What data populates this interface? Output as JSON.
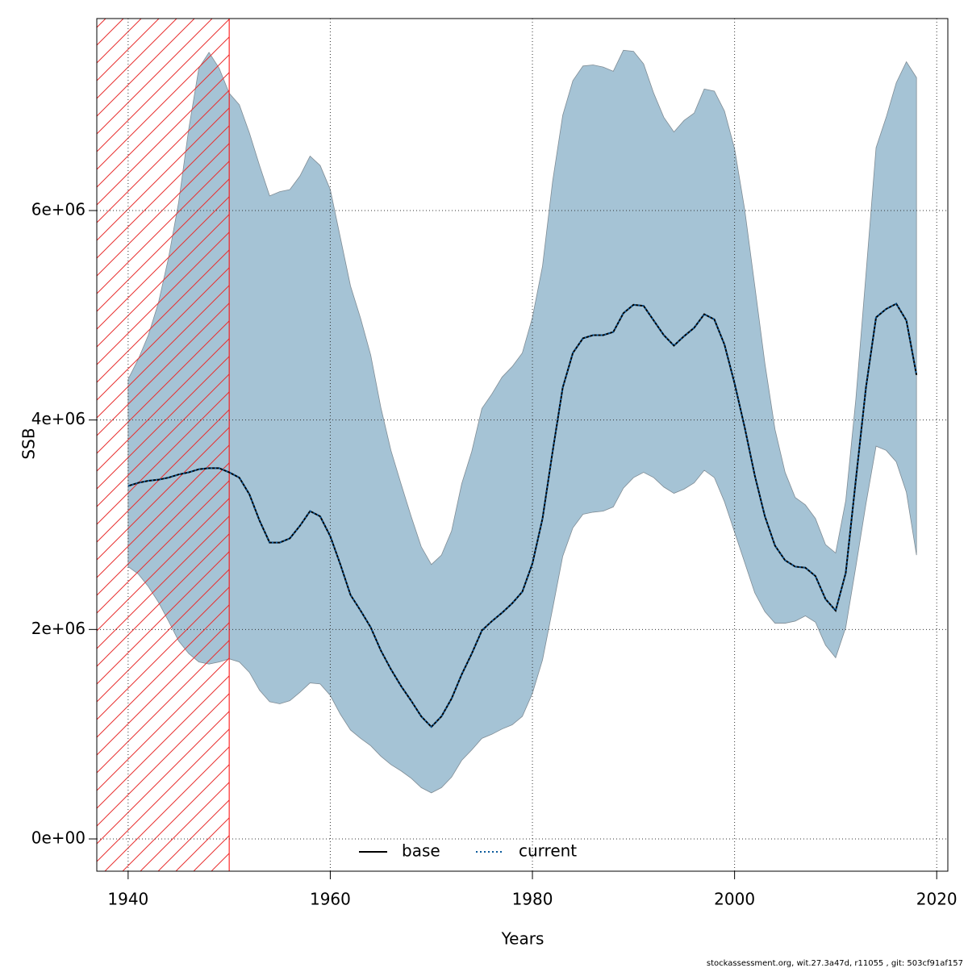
{
  "chart_data": {
    "type": "line",
    "xlabel": "Years",
    "ylabel": "SSB",
    "footnote": "stockassessment.org, wit.27.3a47d, r11055 , git: 503cf91af157",
    "x": [
      1940,
      1941,
      1942,
      1943,
      1944,
      1945,
      1946,
      1947,
      1948,
      1949,
      1950,
      1951,
      1952,
      1953,
      1954,
      1955,
      1956,
      1957,
      1958,
      1959,
      1960,
      1961,
      1962,
      1963,
      1964,
      1965,
      1966,
      1967,
      1968,
      1969,
      1970,
      1971,
      1972,
      1973,
      1974,
      1975,
      1976,
      1977,
      1978,
      1979,
      1980,
      1981,
      1982,
      1983,
      1984,
      1985,
      1986,
      1987,
      1988,
      1989,
      1990,
      1991,
      1992,
      1993,
      1994,
      1995,
      1996,
      1997,
      1998,
      1999,
      2000,
      2001,
      2002,
      2003,
      2004,
      2005,
      2006,
      2007,
      2008,
      2009,
      2010,
      2011,
      2012,
      2013,
      2014,
      2015,
      2016,
      2017,
      2018
    ],
    "series": [
      {
        "name": "base",
        "color": "#000000",
        "values": [
          3370000,
          3400000,
          3420000,
          3430000,
          3450000,
          3480000,
          3500000,
          3530000,
          3540000,
          3540000,
          3500000,
          3450000,
          3290000,
          3040000,
          2830000,
          2830000,
          2870000,
          2990000,
          3130000,
          3080000,
          2890000,
          2620000,
          2330000,
          2180000,
          2020000,
          1800000,
          1620000,
          1460000,
          1320000,
          1170000,
          1070000,
          1170000,
          1340000,
          1570000,
          1770000,
          1990000,
          2080000,
          2160000,
          2250000,
          2360000,
          2630000,
          3060000,
          3700000,
          4310000,
          4640000,
          4780000,
          4810000,
          4810000,
          4840000,
          5020000,
          5100000,
          5090000,
          4950000,
          4810000,
          4710000,
          4800000,
          4880000,
          5010000,
          4960000,
          4720000,
          4350000,
          3930000,
          3470000,
          3080000,
          2800000,
          2660000,
          2600000,
          2590000,
          2510000,
          2290000,
          2180000,
          2540000,
          3430000,
          4310000,
          4980000,
          5060000,
          5110000,
          4950000,
          4430000
        ]
      },
      {
        "name": "current",
        "color": "#0b5a9c",
        "values": [
          3370000,
          3400000,
          3420000,
          3430000,
          3450000,
          3480000,
          3500000,
          3530000,
          3540000,
          3540000,
          3500000,
          3450000,
          3290000,
          3040000,
          2830000,
          2830000,
          2870000,
          2990000,
          3130000,
          3080000,
          2890000,
          2620000,
          2330000,
          2180000,
          2020000,
          1800000,
          1620000,
          1460000,
          1320000,
          1170000,
          1070000,
          1170000,
          1340000,
          1570000,
          1770000,
          1990000,
          2080000,
          2160000,
          2250000,
          2360000,
          2630000,
          3060000,
          3700000,
          4310000,
          4640000,
          4780000,
          4810000,
          4810000,
          4840000,
          5020000,
          5100000,
          5090000,
          4950000,
          4810000,
          4710000,
          4800000,
          4880000,
          5010000,
          4960000,
          4720000,
          4350000,
          3930000,
          3470000,
          3080000,
          2800000,
          2660000,
          2600000,
          2590000,
          2510000,
          2290000,
          2180000,
          2540000,
          3430000,
          4310000,
          4980000,
          5060000,
          5110000,
          4950000,
          4430000
        ]
      }
    ],
    "band": {
      "color": "#a5c3d5",
      "upper": [
        4390000,
        4580000,
        4810000,
        5120000,
        5550000,
        6080000,
        6780000,
        7360000,
        7510000,
        7360000,
        7120000,
        7010000,
        6740000,
        6430000,
        6140000,
        6180000,
        6200000,
        6330000,
        6520000,
        6430000,
        6200000,
        5740000,
        5280000,
        4970000,
        4620000,
        4120000,
        3710000,
        3390000,
        3080000,
        2790000,
        2620000,
        2710000,
        2940000,
        3390000,
        3700000,
        4110000,
        4250000,
        4410000,
        4510000,
        4640000,
        4980000,
        5470000,
        6280000,
        6910000,
        7240000,
        7380000,
        7390000,
        7370000,
        7330000,
        7530000,
        7520000,
        7400000,
        7120000,
        6890000,
        6750000,
        6860000,
        6930000,
        7160000,
        7140000,
        6950000,
        6590000,
        6010000,
        5280000,
        4540000,
        3910000,
        3500000,
        3260000,
        3190000,
        3060000,
        2810000,
        2730000,
        3230000,
        4200000,
        5390000,
        6600000,
        6890000,
        7220000,
        7420000,
        7270000
      ],
      "lower": [
        2600000,
        2530000,
        2410000,
        2260000,
        2080000,
        1890000,
        1770000,
        1690000,
        1670000,
        1690000,
        1720000,
        1690000,
        1590000,
        1420000,
        1310000,
        1290000,
        1320000,
        1400000,
        1490000,
        1480000,
        1370000,
        1190000,
        1040000,
        960000,
        890000,
        790000,
        710000,
        650000,
        580000,
        490000,
        440000,
        490000,
        590000,
        750000,
        850000,
        960000,
        1000000,
        1050000,
        1090000,
        1170000,
        1390000,
        1710000,
        2200000,
        2700000,
        2970000,
        3100000,
        3120000,
        3130000,
        3170000,
        3350000,
        3450000,
        3500000,
        3450000,
        3360000,
        3300000,
        3340000,
        3400000,
        3520000,
        3450000,
        3220000,
        2930000,
        2640000,
        2350000,
        2170000,
        2060000,
        2060000,
        2080000,
        2130000,
        2070000,
        1850000,
        1730000,
        2020000,
        2600000,
        3200000,
        3750000,
        3710000,
        3600000,
        3310000,
        2710000
      ]
    },
    "hatched_xlim": [
      1936.9,
      1950
    ],
    "hatch_color": "#ff0000",
    "xlim": [
      1936.9,
      2021.1
    ],
    "xticks": [
      1940,
      1960,
      1980,
      2000,
      2020
    ],
    "ylim": [
      -308000,
      7833000
    ],
    "yticks": [
      {
        "value": 0,
        "label": "0e+00"
      },
      {
        "value": 2000000,
        "label": "2e+06"
      },
      {
        "value": 4000000,
        "label": "4e+06"
      },
      {
        "value": 6000000,
        "label": "6e+06"
      }
    ],
    "grid": true,
    "legend": "bottom"
  }
}
